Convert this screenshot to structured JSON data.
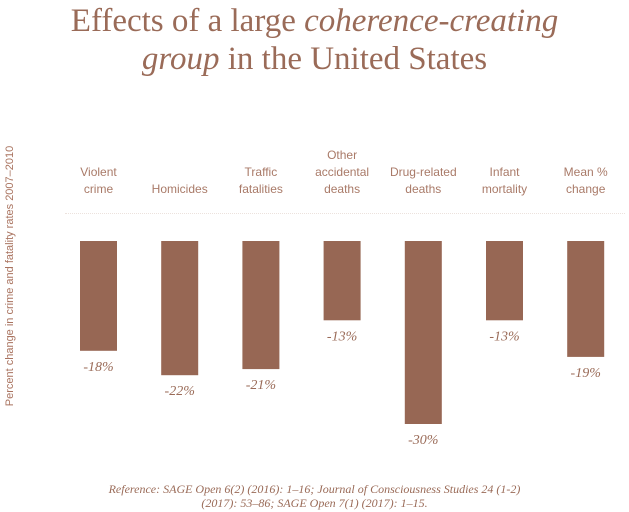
{
  "chart_data": {
    "type": "bar",
    "title_parts": [
      {
        "text": "Effects of a large ",
        "italic": false
      },
      {
        "text": "coherence-creating",
        "italic": true
      },
      {
        "text": "group",
        "italic": true,
        "newline": true
      },
      {
        "text": " in the United States",
        "italic": false
      }
    ],
    "ylabel": "Percent change in crime and fatality rates 2007–2010",
    "categories": [
      "Violent\ncrime",
      "Homicides",
      "Traffic\nfatalities",
      "Other\naccidental\ndeaths",
      "Drug-related\ndeaths",
      "Infant\nmortality",
      "Mean %\nchange"
    ],
    "values": [
      -18,
      -22,
      -21,
      -13,
      -30,
      -13,
      -19
    ],
    "labels": [
      "-18%",
      "-22%",
      "-21%",
      "-13%",
      "-30%",
      "-13%",
      "-19%"
    ],
    "ylim": [
      -30,
      0
    ],
    "grid": false,
    "bar_color": "#976754",
    "text_color": "#9a6b58"
  },
  "reference": {
    "line1": "Reference: SAGE Open 6(2) (2016): 1–16; Journal of Consciousness Studies 24 (1-2)",
    "line2": "(2017): 53–86; SAGE Open 7(1) (2017): 1–15."
  }
}
